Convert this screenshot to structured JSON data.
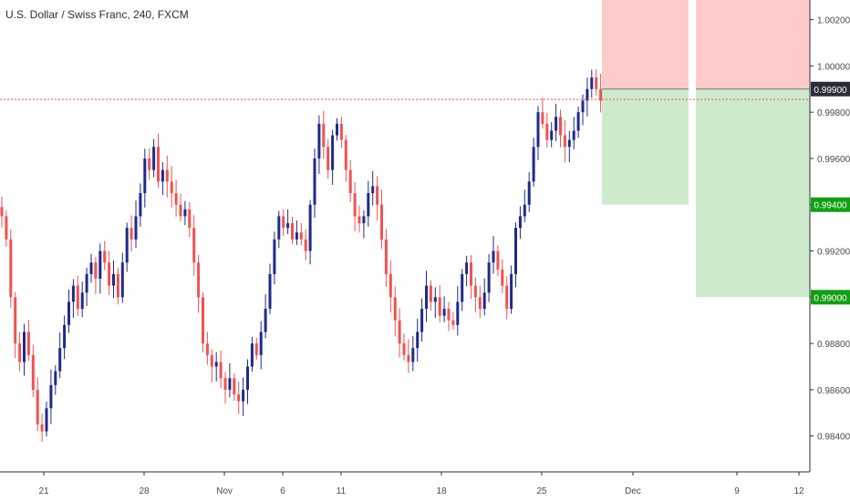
{
  "header": {
    "symbol": "U.S. Dollar / Swiss Franc",
    "interval": "240",
    "exchange": "FXCM",
    "separator": ", "
  },
  "colors": {
    "bull": "#1f2a8c",
    "bear": "#ef5350",
    "risk_zone": "#ffcccb",
    "reward_zone": "#cdebcb",
    "target_badge": "#12a012",
    "current_price_badge": "#2a2e39",
    "current_price_line": "#ef5350",
    "axis_text": "#4a4a4a"
  },
  "chart_data": {
    "type": "candlestick",
    "ylim": [
      0.98245,
      1.00285
    ],
    "y_ticks": [
      "1.00200",
      "1.00000",
      "0.99800",
      "0.99600",
      "0.99400",
      "0.99200",
      "0.99000",
      "0.98800",
      "0.98600",
      "0.98400"
    ],
    "x_ticks": [
      "21",
      "28",
      "Nov",
      "6",
      "11",
      "18",
      "25",
      "Dec",
      "9",
      "12"
    ],
    "current_price": 0.99855,
    "price_badges": [
      {
        "label": "0.99900",
        "value": 0.999,
        "kind": "entry"
      },
      {
        "label": "0.99400",
        "value": 0.994,
        "kind": "target"
      },
      {
        "label": "0.99000",
        "value": 0.99,
        "kind": "target"
      }
    ],
    "positions": [
      {
        "type": "short",
        "entry": 0.999,
        "stop": 1.00285,
        "target": 0.994
      },
      {
        "type": "short",
        "entry": 0.999,
        "stop": 1.00285,
        "target": 0.99
      }
    ],
    "closes": [
      0.9935,
      0.9925,
      0.99,
      0.988,
      0.9872,
      0.9885,
      0.9875,
      0.986,
      0.9845,
      0.9842,
      0.9852,
      0.9862,
      0.9868,
      0.9878,
      0.9888,
      0.9898,
      0.9905,
      0.9895,
      0.9902,
      0.991,
      0.9915,
      0.9908,
      0.992,
      0.9915,
      0.9905,
      0.991,
      0.99,
      0.9915,
      0.993,
      0.9925,
      0.9935,
      0.9945,
      0.996,
      0.9955,
      0.9965,
      0.995,
      0.9955,
      0.995,
      0.9945,
      0.994,
      0.9935,
      0.9938,
      0.993,
      0.9915,
      0.99,
      0.988,
      0.9875,
      0.987,
      0.9872,
      0.9865,
      0.986,
      0.9865,
      0.9858,
      0.9855,
      0.986,
      0.987,
      0.988,
      0.9875,
      0.9885,
      0.9895,
      0.991,
      0.9925,
      0.9935,
      0.993,
      0.9932,
      0.9925,
      0.9928,
      0.9925,
      0.992,
      0.994,
      0.996,
      0.9975,
      0.9965,
      0.9955,
      0.997,
      0.9975,
      0.9968,
      0.9955,
      0.9945,
      0.9935,
      0.9932,
      0.9935,
      0.9945,
      0.9948,
      0.994,
      0.9925,
      0.991,
      0.99,
      0.989,
      0.988,
      0.9875,
      0.9872,
      0.9878,
      0.9885,
      0.9895,
      0.9905,
      0.9898,
      0.99,
      0.9892,
      0.9895,
      0.989,
      0.9888,
      0.9898,
      0.991,
      0.9915,
      0.9905,
      0.99,
      0.9895,
      0.9902,
      0.9915,
      0.992,
      0.9912,
      0.9905,
      0.9895,
      0.991,
      0.993,
      0.9935,
      0.994,
      0.995,
      0.9965,
      0.998,
      0.9975,
      0.9968,
      0.9972,
      0.9978,
      0.997,
      0.9965,
      0.9968,
      0.9972,
      0.998,
      0.9985,
      0.999,
      0.9995,
      0.999,
      0.9985
    ],
    "x_range": [
      0,
      932
    ],
    "candle_spacing": 4.9
  }
}
